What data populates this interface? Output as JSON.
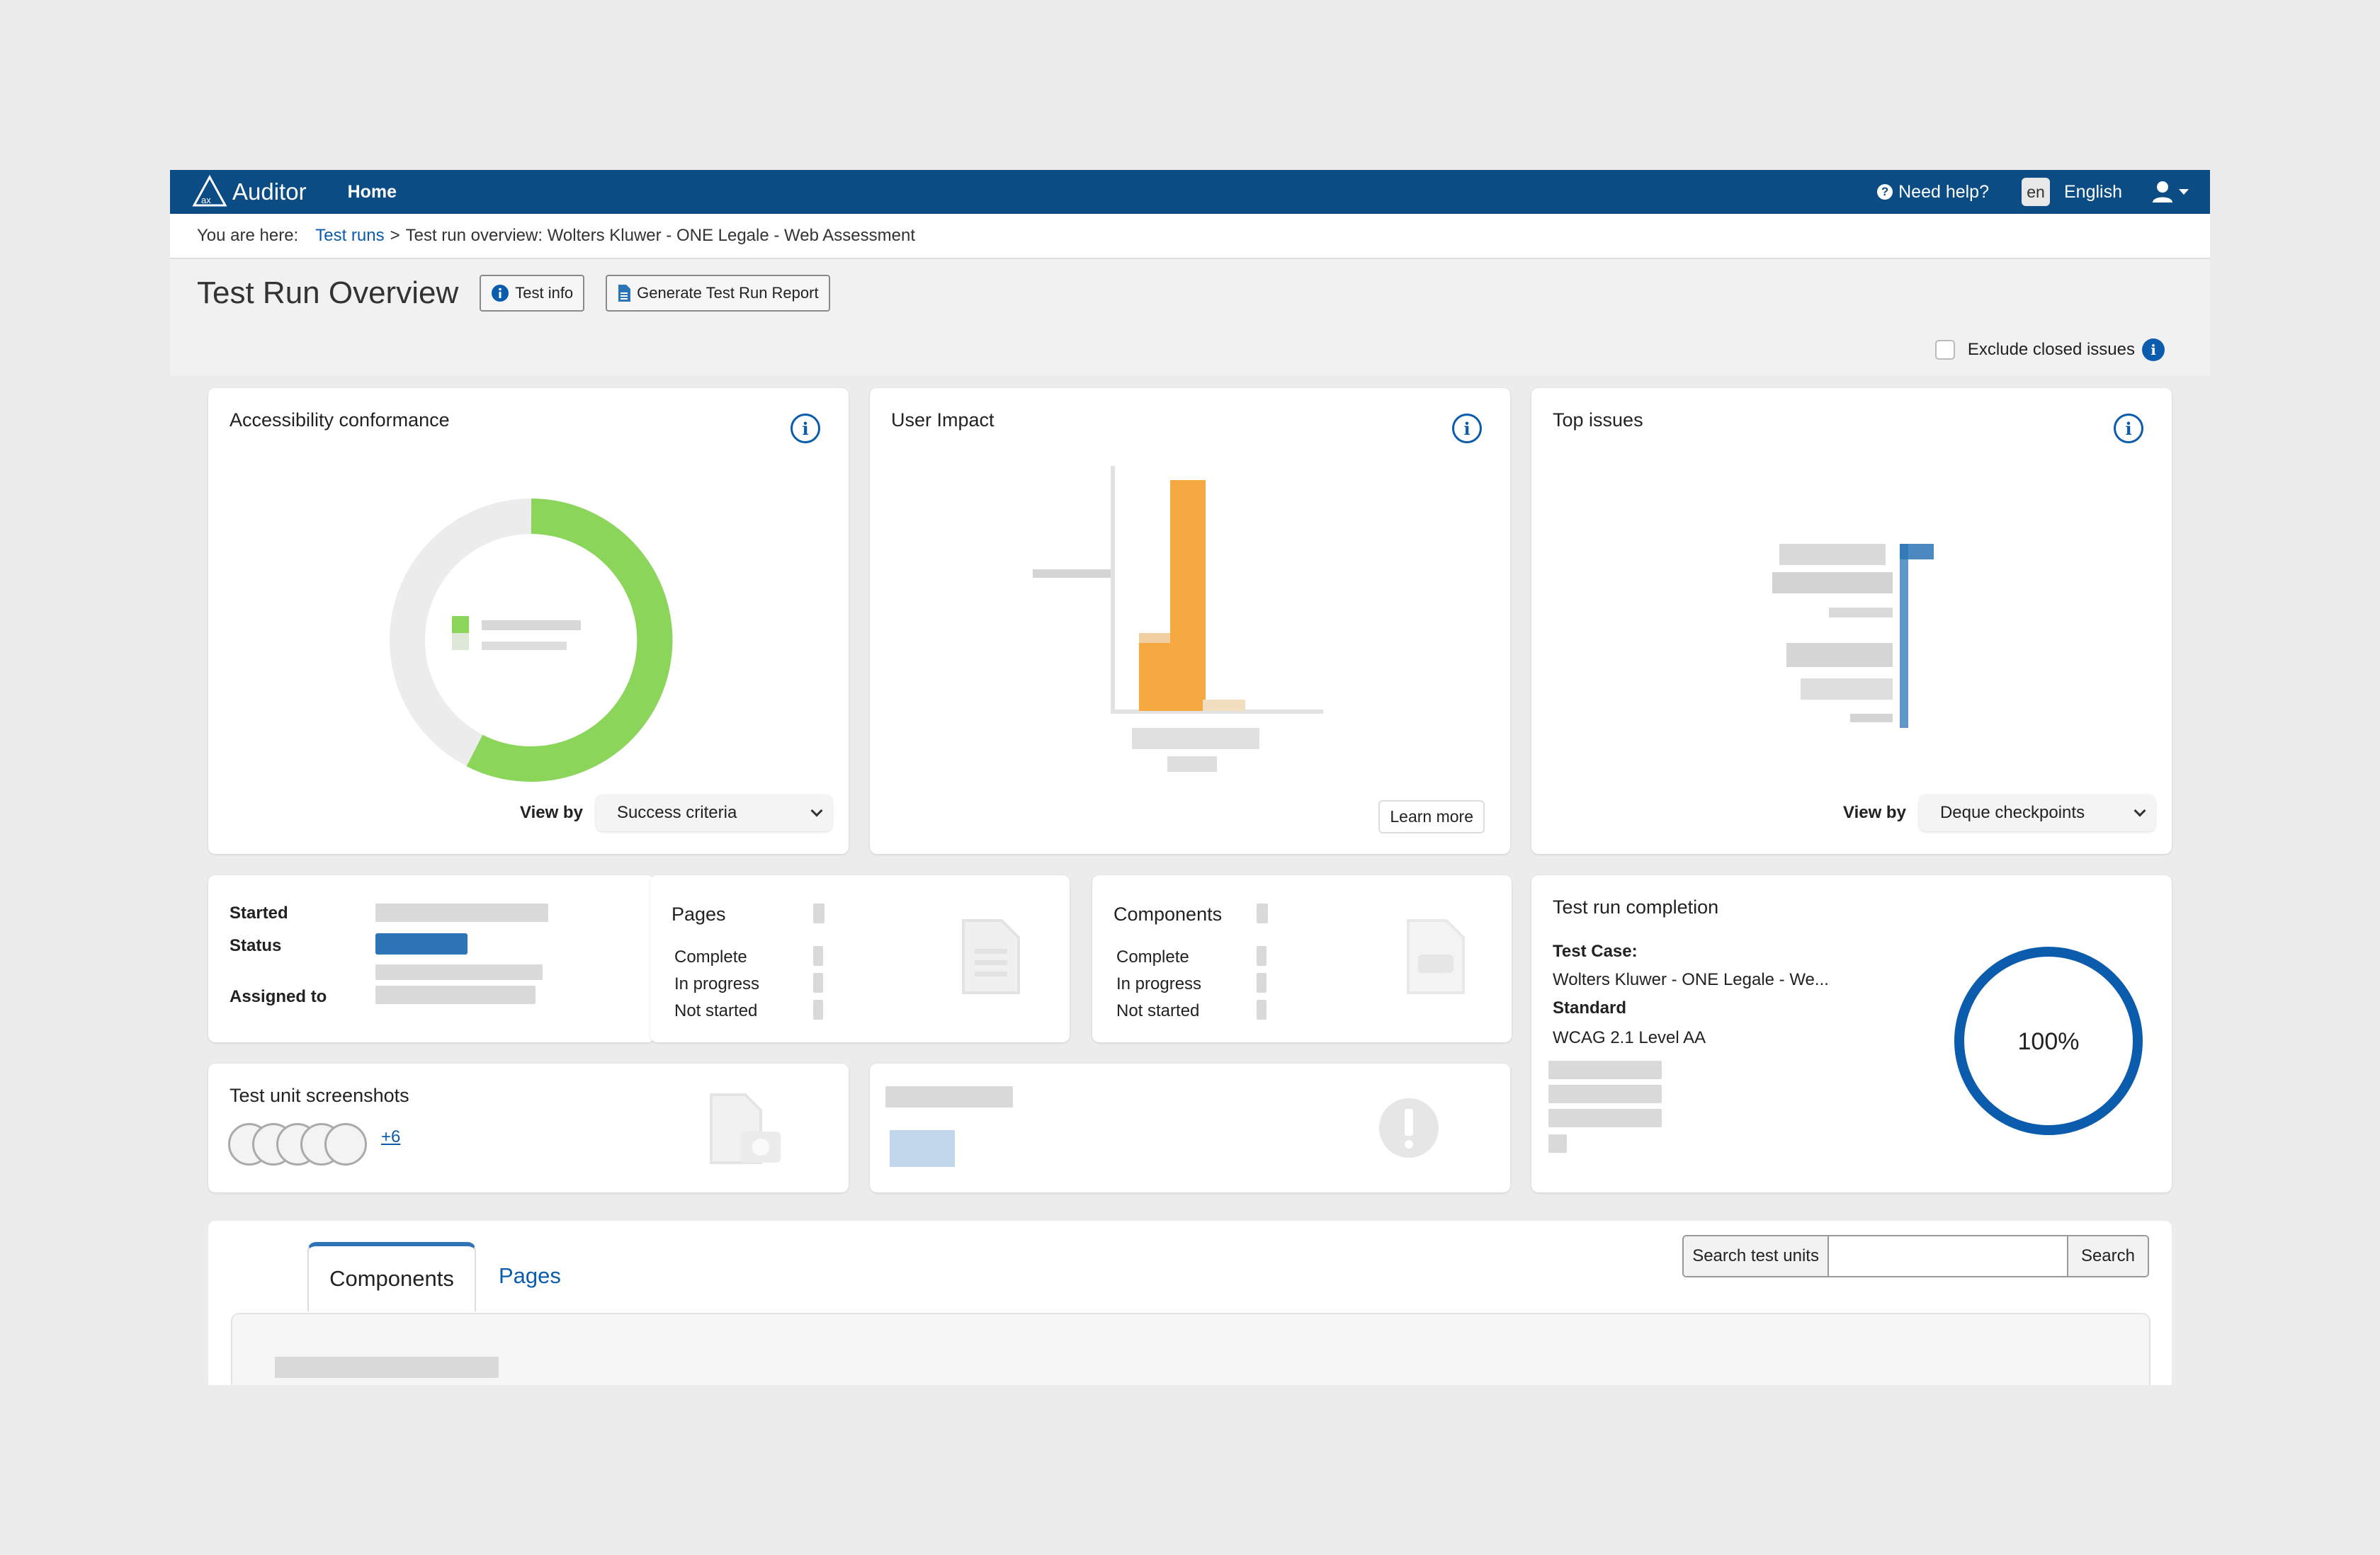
{
  "app": {
    "logo_text": "Auditor",
    "nav_home": "Home",
    "help": "Need help?",
    "lang_code": "en",
    "language": "English"
  },
  "breadcrumb": {
    "prefix": "You are here:",
    "link": "Test runs",
    "separator": ">",
    "current": "Test run overview: Wolters Kluwer - ONE Legale - Web Assessment"
  },
  "header": {
    "title": "Test Run Overview",
    "test_info": "Test info",
    "generate_report": "Generate Test Run Report",
    "exclude_closed": "Exclude closed issues"
  },
  "cards": {
    "conformance": {
      "title": "Accessibility conformance",
      "view_by_label": "View by",
      "view_by_value": "Success criteria"
    },
    "impact": {
      "title": "User Impact",
      "learn_more": "Learn more"
    },
    "top_issues": {
      "title": "Top issues",
      "view_by_label": "View by",
      "view_by_value": "Deque checkpoints"
    },
    "meta": {
      "started": "Started",
      "status": "Status",
      "assigned": "Assigned to"
    },
    "pages": {
      "title": "Pages",
      "complete": "Complete",
      "in_progress": "In progress",
      "not_started": "Not started"
    },
    "components": {
      "title": "Components",
      "complete": "Complete",
      "in_progress": "In progress",
      "not_started": "Not started"
    },
    "completion": {
      "title": "Test run completion",
      "test_case_label": "Test Case:",
      "test_case_value": "Wolters Kluwer - ONE Legale - We...",
      "standard_label": "Standard",
      "standard_value": "WCAG 2.1 Level AA",
      "percent_text": "100%",
      "percent": 100
    },
    "screenshots": {
      "title": "Test unit screenshots",
      "more": "+6"
    }
  },
  "tabs": {
    "components": "Components",
    "pages": "Pages",
    "search_label": "Search test units",
    "search_placeholder": "",
    "search_button": "Search"
  },
  "colors": {
    "brand": "#0b4c85",
    "link": "#0b5cad",
    "green": "#8bd65a",
    "orange": "#f6a940",
    "blue": "#2c74b5"
  }
}
